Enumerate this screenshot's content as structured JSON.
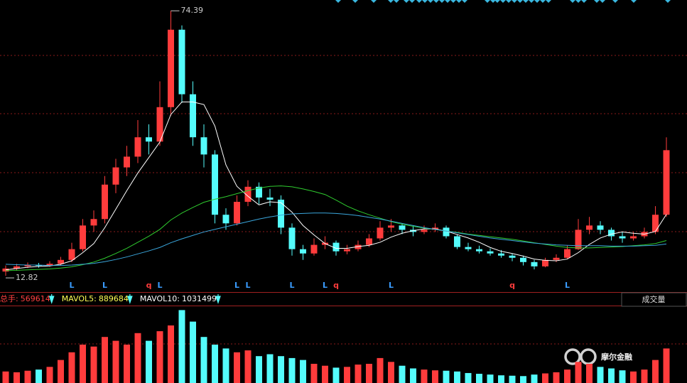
{
  "chart_data": {
    "type": "candlestick",
    "ylim": [
      9.2,
      76.9
    ],
    "up_color": "#ff3c3c",
    "down_color": "#54fcfc",
    "ohlc": [
      [
        13.8,
        15.2,
        12.82,
        14.5
      ],
      [
        14.5,
        15.6,
        14.0,
        15.0
      ],
      [
        15.0,
        15.9,
        14.6,
        15.3
      ],
      [
        15.3,
        15.8,
        14.7,
        15.2
      ],
      [
        15.2,
        16.2,
        14.9,
        15.6
      ],
      [
        15.6,
        17.2,
        15.2,
        16.5
      ],
      [
        16.5,
        20.5,
        16.0,
        19.0
      ],
      [
        19.0,
        26.0,
        18.5,
        24.5
      ],
      [
        24.5,
        28.0,
        23.0,
        26.0
      ],
      [
        26.0,
        36.0,
        25.0,
        34.0
      ],
      [
        34.0,
        40.0,
        32.0,
        38.0
      ],
      [
        38.0,
        43.0,
        36.0,
        40.5
      ],
      [
        40.5,
        49.0,
        39.0,
        45.0
      ],
      [
        45.0,
        48.0,
        41.0,
        44.0
      ],
      [
        44.0,
        58.0,
        43.0,
        52.0
      ],
      [
        52.0,
        74.39,
        50.0,
        70.0
      ],
      [
        70.0,
        71.0,
        53.0,
        55.0
      ],
      [
        55.0,
        58.0,
        43.0,
        45.0
      ],
      [
        45.0,
        48.0,
        38.0,
        41.0
      ],
      [
        41.0,
        42.0,
        25.0,
        27.0
      ],
      [
        27.0,
        28.5,
        23.5,
        25.0
      ],
      [
        25.0,
        31.5,
        24.5,
        30.0
      ],
      [
        30.0,
        35.0,
        29.0,
        33.5
      ],
      [
        33.5,
        34.5,
        29.5,
        31.0
      ],
      [
        31.0,
        33.0,
        29.0,
        30.5
      ],
      [
        30.5,
        31.5,
        22.5,
        24.0
      ],
      [
        24.0,
        25.0,
        17.5,
        19.0
      ],
      [
        19.0,
        20.0,
        16.5,
        18.0
      ],
      [
        18.0,
        21.5,
        17.5,
        20.0
      ],
      [
        20.0,
        22.0,
        19.0,
        20.5
      ],
      [
        20.5,
        21.0,
        17.5,
        18.5
      ],
      [
        18.5,
        20.0,
        17.8,
        19.0
      ],
      [
        19.0,
        21.0,
        18.5,
        20.0
      ],
      [
        20.0,
        22.5,
        19.5,
        21.5
      ],
      [
        21.5,
        25.5,
        21.0,
        24.0
      ],
      [
        24.0,
        26.0,
        23.0,
        24.5
      ],
      [
        24.5,
        25.0,
        22.5,
        23.5
      ],
      [
        23.5,
        24.5,
        22.0,
        23.0
      ],
      [
        23.0,
        24.5,
        22.5,
        23.5
      ],
      [
        23.5,
        25.0,
        23.0,
        24.0
      ],
      [
        24.0,
        24.5,
        21.5,
        22.0
      ],
      [
        22.0,
        22.5,
        19.0,
        19.5
      ],
      [
        19.5,
        20.5,
        18.5,
        19.0
      ],
      [
        19.0,
        19.8,
        18.0,
        18.5
      ],
      [
        18.5,
        19.2,
        17.5,
        18.0
      ],
      [
        18.0,
        18.8,
        17.0,
        17.5
      ],
      [
        17.5,
        18.0,
        16.2,
        17.0
      ],
      [
        17.0,
        17.5,
        15.2,
        16.0
      ],
      [
        16.0,
        16.5,
        14.3,
        15.0
      ],
      [
        15.0,
        17.0,
        14.8,
        16.5
      ],
      [
        16.5,
        17.8,
        16.0,
        17.0
      ],
      [
        17.0,
        19.8,
        16.8,
        19.0
      ],
      [
        19.0,
        26.0,
        18.8,
        23.5
      ],
      [
        23.5,
        26.5,
        22.5,
        24.5
      ],
      [
        24.5,
        25.5,
        22.5,
        23.5
      ],
      [
        23.5,
        24.0,
        21.0,
        22.0
      ],
      [
        22.0,
        23.0,
        20.5,
        21.5
      ],
      [
        21.5,
        23.0,
        21.0,
        22.0
      ],
      [
        22.0,
        24.0,
        21.5,
        23.0
      ],
      [
        23.0,
        29.0,
        22.5,
        27.0
      ],
      [
        27.0,
        45.0,
        26.5,
        42.0
      ]
    ],
    "ma_lines": [
      {
        "color": "#ffffff",
        "values": [
          14.2,
          14.5,
          14.8,
          15.0,
          15.1,
          15.5,
          16.3,
          18.2,
          20.3,
          24.0,
          28.3,
          32.6,
          36.7,
          40.3,
          43.9,
          50.3,
          53.2,
          53.2,
          52.6,
          47.6,
          38.6,
          33.6,
          31.3,
          29.3,
          30.0,
          29.8,
          27.6,
          24.5,
          22.3,
          20.3,
          19.2,
          19.2,
          19.6,
          19.9,
          20.6,
          21.8,
          22.7,
          23.3,
          23.7,
          23.7,
          23.2,
          22.4,
          21.6,
          20.6,
          19.4,
          18.5,
          18.0,
          17.4,
          16.7,
          16.4,
          16.3,
          16.7,
          18.2,
          20.1,
          21.6,
          22.5,
          23.0,
          22.7,
          22.5,
          23.1,
          27.1
        ]
      },
      {
        "color": "#2fcc2f",
        "values": [
          14.0,
          14.1,
          14.2,
          14.3,
          14.4,
          14.6,
          14.9,
          15.4,
          16.0,
          16.9,
          18.0,
          19.2,
          20.6,
          22.0,
          23.6,
          25.8,
          27.4,
          28.7,
          29.9,
          30.6,
          31.2,
          31.9,
          32.6,
          33.2,
          33.6,
          33.7,
          33.5,
          33.0,
          32.4,
          31.7,
          30.4,
          29.0,
          27.9,
          27.0,
          26.2,
          25.4,
          24.8,
          24.3,
          23.9,
          23.6,
          23.2,
          22.9,
          22.5,
          22.2,
          21.9,
          21.6,
          21.3,
          20.9,
          20.5,
          20.1,
          19.7,
          19.4,
          19.3,
          19.3,
          19.4,
          19.5,
          19.6,
          19.8,
          20.0,
          20.3,
          21.0
        ]
      },
      {
        "color": "#3aa6dc",
        "values": [
          15.5,
          15.4,
          15.3,
          15.3,
          15.2,
          15.2,
          15.3,
          15.5,
          15.7,
          16.1,
          16.6,
          17.2,
          17.9,
          18.6,
          19.4,
          20.5,
          21.4,
          22.2,
          23.0,
          23.6,
          24.2,
          24.8,
          25.4,
          26.0,
          26.5,
          26.9,
          27.2,
          27.3,
          27.4,
          27.4,
          27.3,
          27.1,
          26.8,
          26.4,
          26.0,
          25.5,
          25.0,
          24.5,
          24.0,
          23.6,
          23.2,
          22.8,
          22.4,
          22.0,
          21.6,
          21.3,
          21.0,
          20.7,
          20.4,
          20.2,
          20.0,
          19.9,
          19.8,
          19.8,
          19.8,
          19.7,
          19.7,
          19.7,
          19.8,
          19.9,
          20.2
        ]
      }
    ],
    "signals": [
      null,
      null,
      null,
      null,
      null,
      null,
      "L",
      null,
      null,
      "L",
      null,
      null,
      null,
      "q",
      "L",
      null,
      null,
      null,
      null,
      null,
      null,
      "L",
      "L",
      null,
      null,
      null,
      "L",
      null,
      null,
      "L",
      "q",
      null,
      null,
      null,
      null,
      "L",
      null,
      null,
      null,
      null,
      null,
      null,
      null,
      null,
      null,
      null,
      "q",
      null,
      null,
      null,
      null,
      "L",
      null,
      null,
      null,
      null,
      null,
      null,
      null,
      null,
      null
    ],
    "signal_colors": {
      "L": "#3a9cff",
      "q": "#ff3c3c"
    },
    "volume": {
      "ylim": [
        0,
        2000000
      ],
      "values": [
        300000,
        280000,
        320000,
        350000,
        420000,
        600000,
        800000,
        1000000,
        950000,
        1200000,
        1100000,
        1000000,
        1300000,
        1100000,
        1350000,
        1500000,
        1900000,
        1600000,
        1200000,
        1000000,
        900000,
        800000,
        850000,
        700000,
        750000,
        700000,
        650000,
        600000,
        500000,
        450000,
        400000,
        420000,
        480000,
        500000,
        650000,
        550000,
        450000,
        380000,
        350000,
        330000,
        320000,
        300000,
        260000,
        240000,
        220000,
        200000,
        190000,
        180000,
        220000,
        250000,
        280000,
        350000,
        550000,
        500000,
        420000,
        380000,
        330000,
        300000,
        350000,
        600000,
        900000
      ],
      "header": [
        {
          "label": "总手:",
          "value": 569614,
          "color": "#ff4040"
        },
        {
          "label": "MAVOL5:",
          "value": 889684,
          "color": "#ffff55"
        },
        {
          "label": "MAVOL10:",
          "value": 1031499,
          "color": "#ffffff"
        }
      ],
      "selector": "成交量"
    },
    "watermark": "摩尔金融"
  }
}
